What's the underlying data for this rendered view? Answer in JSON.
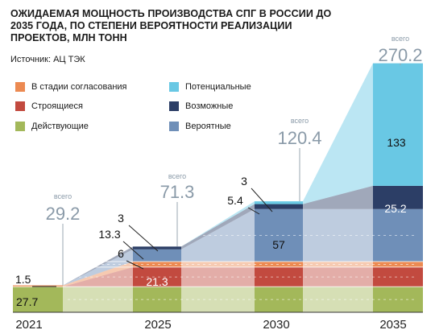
{
  "title": "ОЖИДАЕМАЯ МОЩНОСТЬ ПРОИЗВОДСТВА СПГ В РОССИИ ДО 2035 ГОДА, ПО СТЕПЕНИ ВЕРОЯТНОСТИ РЕАЛИЗАЦИИ ПРОЕКТОВ, МЛН ТОНН",
  "source": "Источник: АЦ ТЭК",
  "total_word": "всего",
  "colors": {
    "operating": "#a3b85a",
    "under_construction": "#c24a3f",
    "approval": "#ec8a52",
    "probable": "#6f8fb8",
    "possible": "#2c3e66",
    "potential": "#69c8e4"
  },
  "chart_data": {
    "type": "area",
    "title": "ОЖИДАЕМАЯ МОЩНОСТЬ ПРОИЗВОДСТВА СПГ В РОССИИ ДО 2035 ГОДА, ПО СТЕПЕНИ ВЕРОЯТНОСТИ РЕАЛИЗАЦИИ ПРОЕКТОВ, МЛН ТОНН",
    "categories": [
      "2021",
      "2025",
      "2030",
      "2035"
    ],
    "series": [
      {
        "name": "Действующие",
        "values": [
          27.7,
          27.7,
          27.7,
          27.7
        ],
        "labels": [
          "27.7",
          "",
          "",
          ""
        ]
      },
      {
        "name": "Строящиеся",
        "values": [
          0,
          21.3,
          21.3,
          21.3
        ],
        "labels": [
          "",
          "21.3",
          "",
          ""
        ]
      },
      {
        "name": "В стадии согласования",
        "values": [
          1.5,
          6,
          6,
          6
        ],
        "labels": [
          "1.5",
          "6",
          "",
          ""
        ]
      },
      {
        "name": "Вероятные",
        "values": [
          0,
          13.3,
          57,
          57
        ],
        "labels": [
          "",
          "13.3",
          "57",
          ""
        ]
      },
      {
        "name": "Возможные",
        "values": [
          0,
          3,
          5.4,
          25.2
        ],
        "labels": [
          "",
          "3",
          "5.4",
          "25.2"
        ]
      },
      {
        "name": "Потенциальные",
        "values": [
          0,
          0,
          3,
          133
        ],
        "labels": [
          "",
          "",
          "3",
          "133"
        ]
      }
    ],
    "totals": [
      "29.2",
      "71.3",
      "120.4",
      "270.2"
    ],
    "legend": [
      {
        "name": "В стадии согласования",
        "color": "#ec8a52"
      },
      {
        "name": "Потенциальные",
        "color": "#69c8e4"
      },
      {
        "name": "Строящиеся",
        "color": "#c24a3f"
      },
      {
        "name": "Возможные",
        "color": "#2c3e66"
      },
      {
        "name": "Действующие",
        "color": "#a3b85a"
      },
      {
        "name": "Вероятные",
        "color": "#6f8fb8"
      }
    ],
    "legend_placement": "top-left",
    "grid": false
  }
}
